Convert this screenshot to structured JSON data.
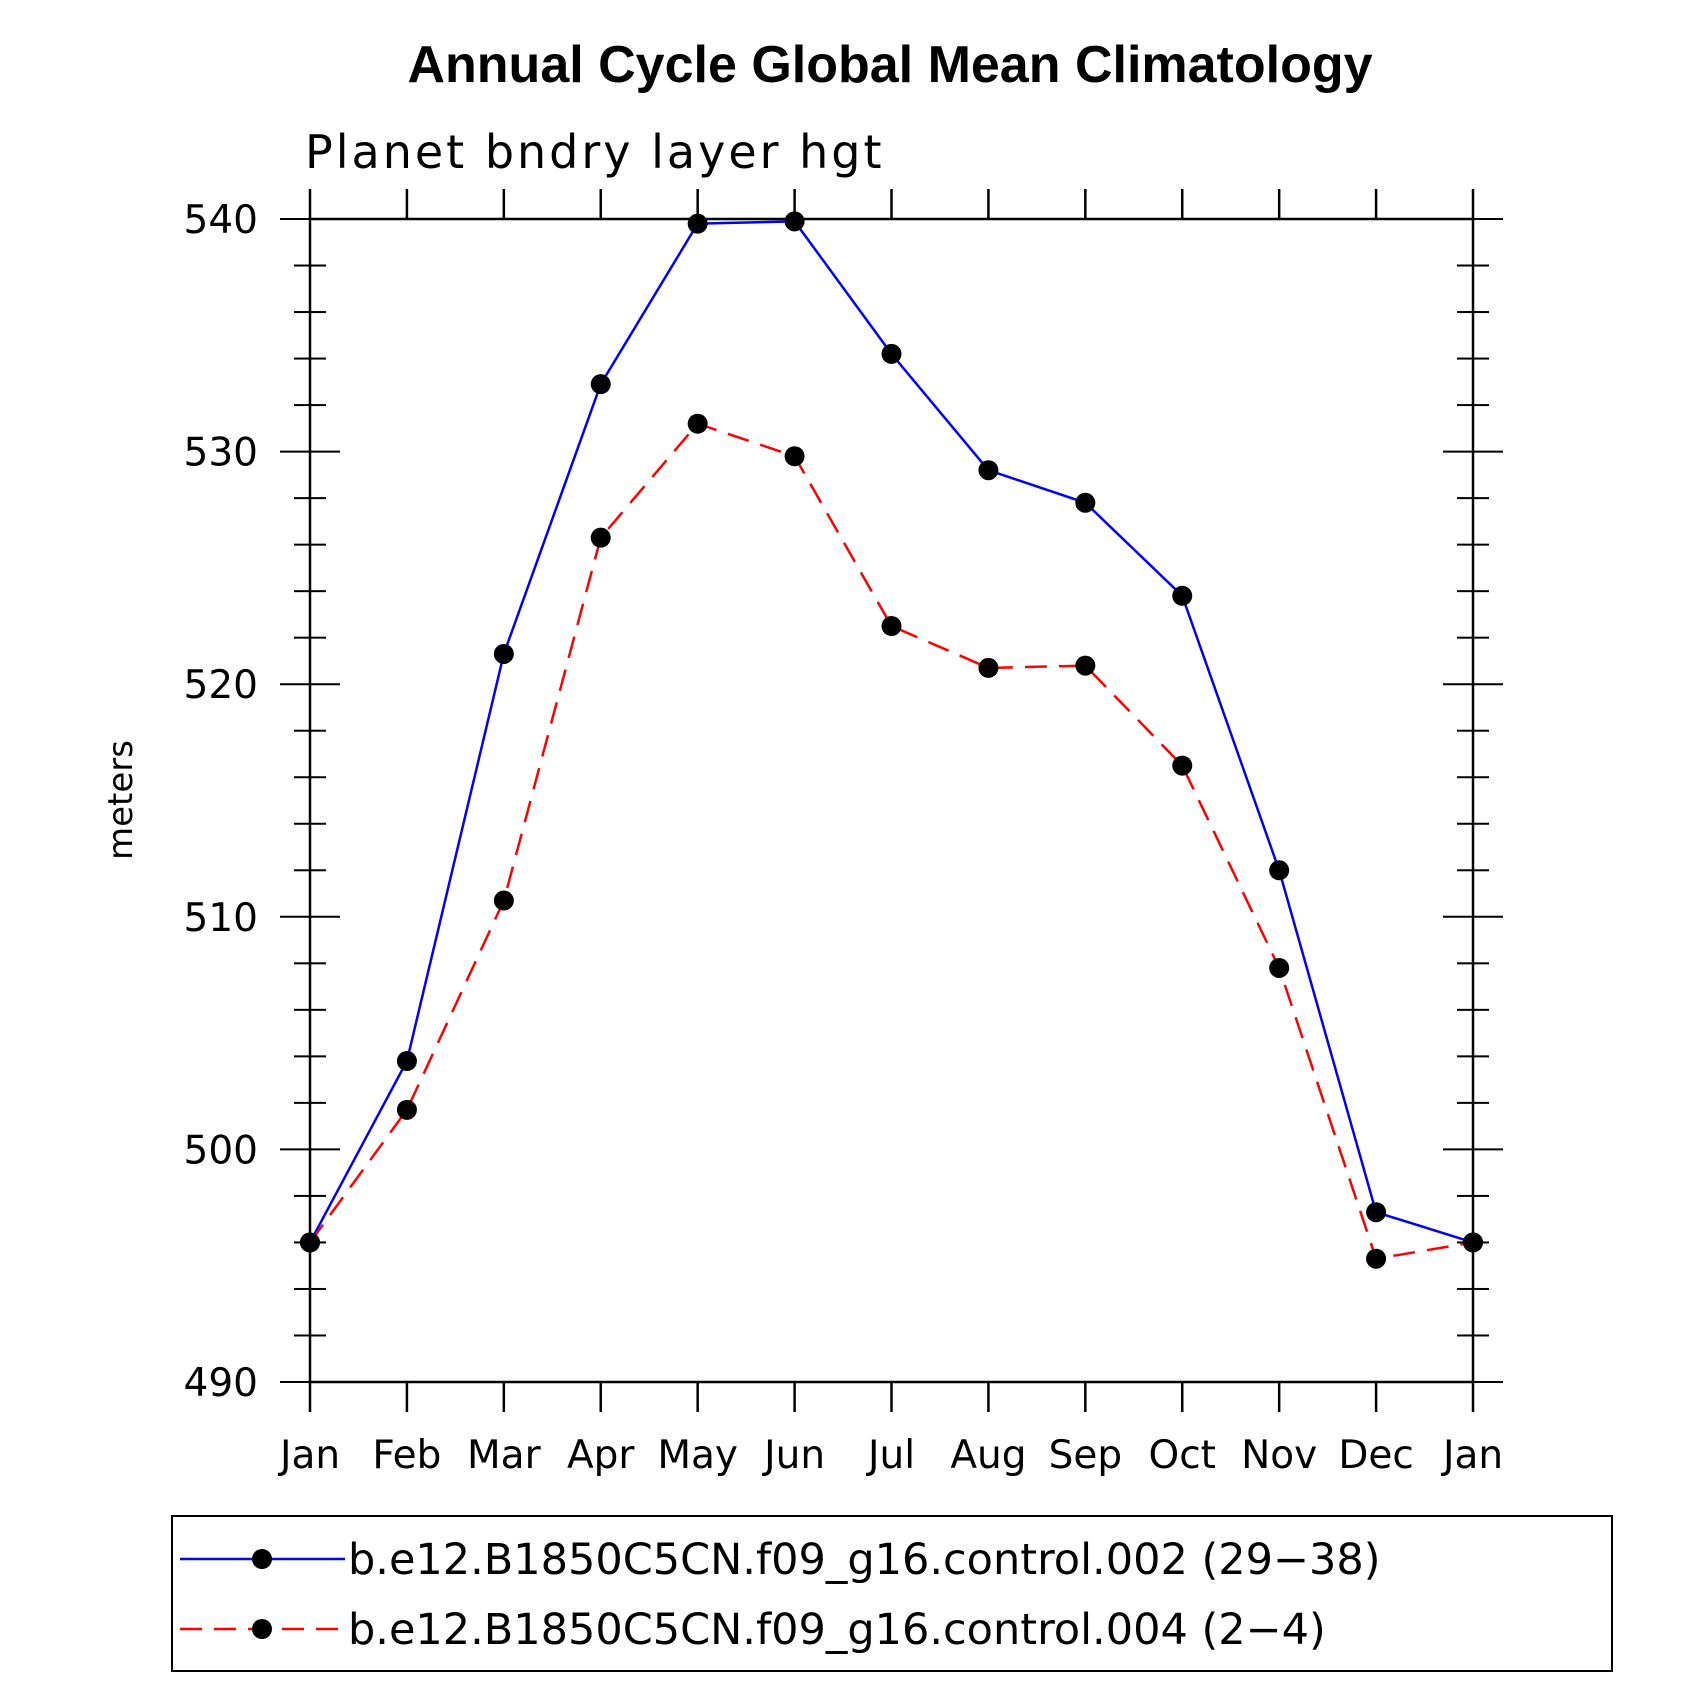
{
  "chart_data": {
    "type": "line",
    "title": "Annual Cycle Global Mean Climatology",
    "subtitle": "Planet bndry layer hgt",
    "xlabel": "",
    "ylabel": "meters",
    "categories": [
      "Jan",
      "Feb",
      "Mar",
      "Apr",
      "May",
      "Jun",
      "Jul",
      "Aug",
      "Sep",
      "Oct",
      "Nov",
      "Dec",
      "Jan"
    ],
    "ylim": [
      490,
      540
    ],
    "yticks": [
      "490",
      "500",
      "510",
      "520",
      "530",
      "540"
    ],
    "series": [
      {
        "name": "b.e12.B1850C5CN.f09_g16.control.002 (29−38)",
        "color": "#0000ff",
        "dashed": false,
        "values": [
          496.0,
          503.8,
          521.3,
          532.9,
          539.8,
          539.9,
          534.2,
          529.2,
          527.8,
          523.8,
          512.0,
          497.3,
          496.0
        ]
      },
      {
        "name": "b.e12.B1850C5CN.f09_g16.control.004 (2−4)",
        "color": "#ff0000",
        "dashed": true,
        "values": [
          496.0,
          501.7,
          510.7,
          526.3,
          531.2,
          529.8,
          522.5,
          520.7,
          520.8,
          516.5,
          507.8,
          495.3,
          496.0
        ]
      }
    ],
    "grid": false,
    "legend_position": "bottom"
  }
}
